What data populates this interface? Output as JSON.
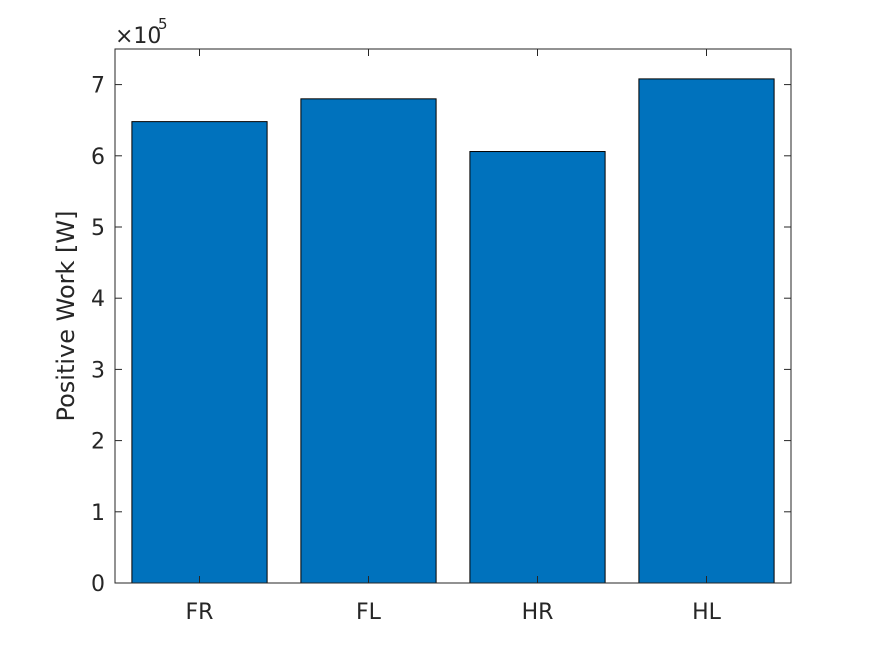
{
  "chart_data": {
    "type": "bar",
    "categories": [
      "FR",
      "FL",
      "HR",
      "HL"
    ],
    "values": [
      648000,
      680000,
      606000,
      708000
    ],
    "title": "",
    "xlabel": "",
    "ylabel": "Positive Work [W]",
    "ylim": [
      0,
      750000
    ],
    "yticks": [
      0,
      1,
      2,
      3,
      4,
      5,
      6,
      7
    ],
    "ytick_multiplier": "×10",
    "ytick_exponent": "5",
    "grid": false,
    "bar_color": "#0072BD",
    "edge_color": "#000000",
    "axis_color": "#262626"
  }
}
